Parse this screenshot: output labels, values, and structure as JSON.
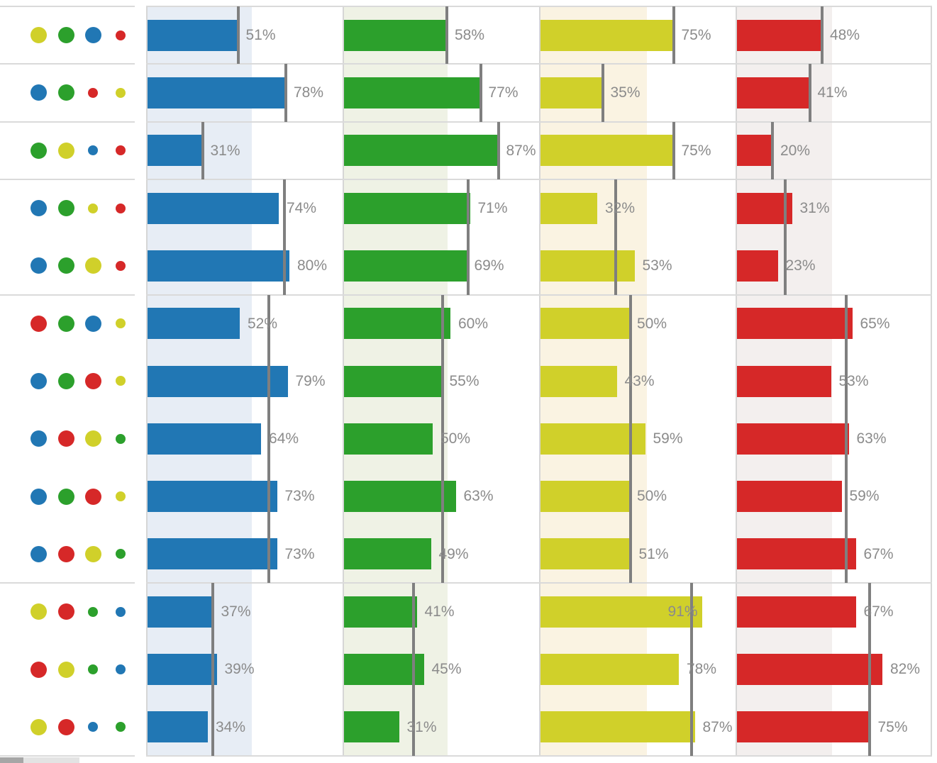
{
  "chart_data": {
    "type": "bar",
    "orientation": "horizontal",
    "unit": "%",
    "xlim": [
      0,
      100
    ],
    "series": [
      {
        "name": "blue",
        "color": "#2177B4",
        "band_color": "#E7EDF5",
        "column_avg": 58.8
      },
      {
        "name": "green",
        "color": "#2CA02C",
        "band_color": "#EFF2E5",
        "column_avg": 58.2
      },
      {
        "name": "yellow",
        "color": "#D0D02A",
        "band_color": "#FAF3E2",
        "column_avg": 59.9
      },
      {
        "name": "red",
        "color": "#D62828",
        "band_color": "#F3EFEE",
        "column_avg": 53.4
      }
    ],
    "rows": [
      {
        "dots": [
          {
            "color": "yellow",
            "size": "lg"
          },
          {
            "color": "green",
            "size": "lg"
          },
          {
            "color": "blue",
            "size": "lg"
          },
          {
            "color": "red",
            "size": "sm"
          }
        ],
        "values": [
          51,
          58,
          75,
          48
        ],
        "labels": [
          "51%",
          "58%",
          "75%",
          "48%"
        ]
      },
      {
        "dots": [
          {
            "color": "blue",
            "size": "lg"
          },
          {
            "color": "green",
            "size": "lg"
          },
          {
            "color": "red",
            "size": "sm"
          },
          {
            "color": "yellow",
            "size": "sm"
          }
        ],
        "values": [
          78,
          77,
          35,
          41
        ],
        "labels": [
          "78%",
          "77%",
          "35%",
          "41%"
        ]
      },
      {
        "dots": [
          {
            "color": "green",
            "size": "lg"
          },
          {
            "color": "yellow",
            "size": "lg"
          },
          {
            "color": "blue",
            "size": "sm"
          },
          {
            "color": "red",
            "size": "sm"
          }
        ],
        "values": [
          31,
          87,
          75,
          20
        ],
        "labels": [
          "31%",
          "87%",
          "75%",
          "20%"
        ]
      },
      {
        "dots": [
          {
            "color": "blue",
            "size": "lg"
          },
          {
            "color": "green",
            "size": "lg"
          },
          {
            "color": "yellow",
            "size": "sm"
          },
          {
            "color": "red",
            "size": "sm"
          }
        ],
        "values": [
          74,
          71,
          32,
          31
        ],
        "labels": [
          "74%",
          "71%",
          "32%",
          "31%"
        ]
      },
      {
        "dots": [
          {
            "color": "blue",
            "size": "lg"
          },
          {
            "color": "green",
            "size": "lg"
          },
          {
            "color": "yellow",
            "size": "lg"
          },
          {
            "color": "red",
            "size": "sm"
          }
        ],
        "values": [
          80,
          69,
          53,
          23
        ],
        "labels": [
          "80%",
          "69%",
          "53%",
          "23%"
        ]
      },
      {
        "dots": [
          {
            "color": "red",
            "size": "lg"
          },
          {
            "color": "green",
            "size": "lg"
          },
          {
            "color": "blue",
            "size": "lg"
          },
          {
            "color": "yellow",
            "size": "sm"
          }
        ],
        "values": [
          52,
          60,
          50,
          65
        ],
        "labels": [
          "52%",
          "60%",
          "50%",
          "65%"
        ]
      },
      {
        "dots": [
          {
            "color": "blue",
            "size": "lg"
          },
          {
            "color": "green",
            "size": "lg"
          },
          {
            "color": "red",
            "size": "lg"
          },
          {
            "color": "yellow",
            "size": "sm"
          }
        ],
        "values": [
          79,
          55,
          43,
          53
        ],
        "labels": [
          "79%",
          "55%",
          "43%",
          "53%"
        ]
      },
      {
        "dots": [
          {
            "color": "blue",
            "size": "lg"
          },
          {
            "color": "red",
            "size": "lg"
          },
          {
            "color": "yellow",
            "size": "lg"
          },
          {
            "color": "green",
            "size": "sm"
          }
        ],
        "values": [
          64,
          50,
          59,
          63
        ],
        "labels": [
          "64%",
          "50%",
          "59%",
          "63%"
        ]
      },
      {
        "dots": [
          {
            "color": "blue",
            "size": "lg"
          },
          {
            "color": "green",
            "size": "lg"
          },
          {
            "color": "red",
            "size": "lg"
          },
          {
            "color": "yellow",
            "size": "sm"
          }
        ],
        "values": [
          73,
          63,
          50,
          59
        ],
        "labels": [
          "73%",
          "63%",
          "50%",
          "59%"
        ]
      },
      {
        "dots": [
          {
            "color": "blue",
            "size": "lg"
          },
          {
            "color": "red",
            "size": "lg"
          },
          {
            "color": "yellow",
            "size": "lg"
          },
          {
            "color": "green",
            "size": "sm"
          }
        ],
        "values": [
          73,
          49,
          51,
          67
        ],
        "labels": [
          "73%",
          "49%",
          "51%",
          "67%"
        ]
      },
      {
        "dots": [
          {
            "color": "yellow",
            "size": "lg"
          },
          {
            "color": "red",
            "size": "lg"
          },
          {
            "color": "green",
            "size": "sm"
          },
          {
            "color": "blue",
            "size": "sm"
          }
        ],
        "values": [
          37,
          41,
          91,
          67
        ],
        "labels": [
          "37%",
          "41%",
          "91%",
          "67%"
        ]
      },
      {
        "dots": [
          {
            "color": "red",
            "size": "lg"
          },
          {
            "color": "yellow",
            "size": "lg"
          },
          {
            "color": "green",
            "size": "sm"
          },
          {
            "color": "blue",
            "size": "sm"
          }
        ],
        "values": [
          39,
          45,
          78,
          82
        ],
        "labels": [
          "39%",
          "45%",
          "78%",
          "82%"
        ]
      },
      {
        "dots": [
          {
            "color": "yellow",
            "size": "lg"
          },
          {
            "color": "red",
            "size": "lg"
          },
          {
            "color": "blue",
            "size": "sm"
          },
          {
            "color": "green",
            "size": "sm"
          }
        ],
        "values": [
          34,
          31,
          87,
          75
        ],
        "labels": [
          "34%",
          "31%",
          "87%",
          "75%"
        ]
      }
    ],
    "groups": [
      {
        "row_indexes": [
          0
        ],
        "benchmark_avgs": [
          51,
          58,
          75,
          48
        ]
      },
      {
        "row_indexes": [
          1
        ],
        "benchmark_avgs": [
          78,
          77,
          35,
          41
        ]
      },
      {
        "row_indexes": [
          2
        ],
        "benchmark_avgs": [
          31,
          87,
          75,
          20
        ]
      },
      {
        "row_indexes": [
          3,
          4
        ],
        "benchmark_avgs": [
          77,
          70,
          42.5,
          27
        ]
      },
      {
        "row_indexes": [
          5,
          6,
          7,
          8,
          9
        ],
        "benchmark_avgs": [
          68.2,
          55.4,
          50.6,
          61.4
        ]
      },
      {
        "row_indexes": [
          10,
          11,
          12
        ],
        "benchmark_avgs": [
          36.7,
          39,
          85.3,
          74.7
        ]
      }
    ]
  },
  "colors": {
    "background": "#FFFFFF",
    "benchmark_line": "#7F7F7F",
    "value_label": "#8B8B8B",
    "separator_line": "#DADADA",
    "column_divider": "#D6D6D6",
    "scrollbar_track": "#E3E3E3",
    "scrollbar_thumb": "#A6A6A6"
  }
}
